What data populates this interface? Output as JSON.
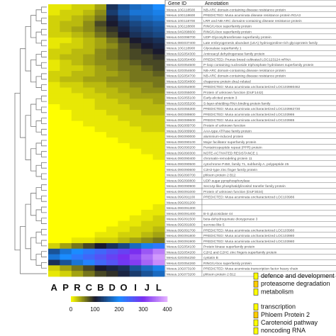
{
  "chart_data": {
    "type": "heatmap",
    "title": "",
    "xlabel": "",
    "ylabel": "",
    "columns": [
      "A",
      "P",
      "R",
      "C",
      "B",
      "D",
      "O",
      "I",
      "J",
      "L"
    ],
    "color_scale": {
      "ticks": [
        0,
        100,
        200,
        300,
        400
      ],
      "range": [
        0,
        400
      ],
      "colors": [
        "#ffff00",
        "#1a1a2e",
        "#1a8cff",
        "#7a2ff0",
        "#e6b3ff"
      ]
    },
    "table_headers": [
      "Gene ID",
      "Annotation"
    ],
    "rows": [
      {
        "gene_id": "Mesus.10G118500",
        "annotation": "NB-ARC domain-containing disease resistance protein",
        "cat": "#2b2bd6",
        "values": [
          10,
          10,
          20,
          20,
          40,
          120,
          150,
          170,
          180,
          200
        ]
      },
      {
        "gene_id": "Mesus.10G118600",
        "annotation": "PREDICTED: Musa acuminata disease resistance protein RGA3",
        "cat": "#2b2bd6",
        "values": [
          10,
          20,
          20,
          30,
          50,
          130,
          160,
          180,
          180,
          190
        ]
      },
      {
        "gene_id": "Mesus.10G118700",
        "annotation": "LRR and NB-ARC domains-containing disease resistance protein",
        "cat": "#2b2bd6",
        "values": [
          20,
          20,
          30,
          40,
          60,
          110,
          140,
          160,
          170,
          180
        ]
      },
      {
        "gene_id": "Mesus.10G118800",
        "annotation": "RING/U-box superfamily protein",
        "cat": "#2b2bd6",
        "values": [
          20,
          30,
          30,
          50,
          80,
          100,
          120,
          140,
          150,
          160
        ]
      },
      {
        "gene_id": "Mesus.04G098600",
        "annotation": "RING/U-box superfamily protein",
        "cat": "#2b2bd6",
        "values": [
          20,
          30,
          40,
          50,
          70,
          90,
          110,
          130,
          140,
          150
        ]
      },
      {
        "gene_id": "Mesus.04G098700",
        "annotation": "UDP-Glycosyltransferase superfamily protein",
        "cat": "#2b2bd6",
        "values": [
          20,
          20,
          30,
          40,
          60,
          80,
          100,
          120,
          130,
          140
        ]
      },
      {
        "gene_id": "Mesus.08G037400",
        "annotation": "Late embryogenesis abundant (LEA) hydroxyproline-rich glycoprotein family",
        "cat": "#2b2bd6",
        "values": [
          10,
          10,
          20,
          30,
          40,
          60,
          80,
          100,
          110,
          120
        ]
      },
      {
        "gene_id": "Mesus.10G118900",
        "annotation": "Glyoxalase superfamily 1",
        "cat": "#2b2bd6",
        "values": [
          10,
          20,
          20,
          30,
          40,
          50,
          70,
          90,
          100,
          110
        ]
      },
      {
        "gene_id": "Mesus.02G054300",
        "annotation": "Aminoacyl dehydrogenase family protein",
        "cat": "#2b2bd6",
        "values": [
          20,
          20,
          30,
          30,
          50,
          60,
          70,
          80,
          90,
          100
        ]
      },
      {
        "gene_id": "Mesus.02G054400",
        "annotation": "PREDICTED: Prunus breed cultivated LOC123124 mRNA",
        "cat": "#2b2bd6",
        "values": [
          20,
          30,
          30,
          40,
          50,
          60,
          70,
          80,
          80,
          90
        ]
      },
      {
        "gene_id": "Mesus.02G054500",
        "annotation": "P-loop containing nucleoside triphosphate hydrolases superfamily protein",
        "cat": "#2b2bd6",
        "values": [
          10,
          20,
          30,
          40,
          50,
          50,
          60,
          70,
          80,
          80
        ]
      },
      {
        "gene_id": "Mesus.02G054600",
        "annotation": "NB-ARC domain-containing disease resistance protein",
        "cat": "#2b2bd6",
        "values": [
          10,
          20,
          20,
          30,
          40,
          50,
          60,
          60,
          70,
          80
        ]
      },
      {
        "gene_id": "Mesus.02G054700",
        "annotation": "NB-ARC domain-containing disease resistance protein",
        "cat": "#2b2bd6",
        "values": [
          20,
          20,
          30,
          30,
          40,
          40,
          50,
          60,
          60,
          70
        ]
      },
      {
        "gene_id": "Mesus.02G054800",
        "annotation": "chaperone protein dnaJ-related",
        "cat": "#2b2bd6",
        "values": [
          20,
          30,
          30,
          40,
          40,
          50,
          50,
          60,
          60,
          60
        ]
      },
      {
        "gene_id": "Mesus.02G054900",
        "annotation": "PREDICTED: Musa acuminata uncharacterized LOC103980462",
        "cat": "#2b2bd6",
        "values": [
          10,
          20,
          20,
          30,
          30,
          40,
          40,
          50,
          50,
          60
        ]
      },
      {
        "gene_id": "Mesus.02G055000",
        "annotation": "Protein of unknown function (DUF1442)",
        "cat": "#2b2bd6",
        "values": [
          10,
          10,
          20,
          20,
          30,
          30,
          40,
          40,
          50,
          50
        ]
      },
      {
        "gene_id": "Mesus.02G055100",
        "annotation": "Early-elicited protein 3",
        "cat": "#2b2bd6",
        "values": [
          10,
          10,
          10,
          20,
          20,
          30,
          30,
          40,
          40,
          40
        ]
      },
      {
        "gene_id": "Mesus.02G055200",
        "annotation": "S-layer-shielding-RNA-binding protein family",
        "cat": "#2b2bd6",
        "values": [
          10,
          10,
          10,
          10,
          20,
          20,
          30,
          30,
          30,
          40
        ]
      },
      {
        "gene_id": "Mesus.02G055300",
        "annotation": "PREDICTED: Musa acuminata uncharacterized LOC103982730",
        "cat": "#2b2bd6",
        "values": [
          0,
          10,
          10,
          10,
          20,
          20,
          20,
          30,
          30,
          30
        ]
      },
      {
        "gene_id": "Mesus.08G089800",
        "annotation": "PREDICTED: Musa acuminata uncharacterized LOC103986",
        "cat": "#2b2bd6",
        "values": [
          0,
          0,
          10,
          10,
          10,
          20,
          20,
          20,
          30,
          30
        ]
      },
      {
        "gene_id": "Mesus.09G089600",
        "annotation": "PREDICTED: Musa acuminata uncharacterized LOC103986",
        "cat": "#2b2bd6",
        "values": [
          0,
          0,
          10,
          10,
          10,
          10,
          20,
          20,
          20,
          20
        ]
      },
      {
        "gene_id": "Mesus.09G089700",
        "annotation": "Protein of unknown function",
        "cat": "#2b2bd6",
        "values": [
          0,
          0,
          0,
          10,
          10,
          10,
          10,
          20,
          20,
          20
        ]
      },
      {
        "gene_id": "Mesus.09G089900",
        "annotation": "AAA-type ATPase family protein",
        "cat": "#2b2bd6",
        "values": [
          0,
          0,
          0,
          0,
          10,
          10,
          10,
          10,
          20,
          20
        ]
      },
      {
        "gene_id": "Mesus.09G090000",
        "annotation": "aluminium-induced protein",
        "cat": "#2b2bd6",
        "values": [
          0,
          0,
          0,
          0,
          0,
          10,
          10,
          10,
          10,
          10
        ]
      },
      {
        "gene_id": "Mesus.09G090100",
        "annotation": "Major facilitator superfamily protein",
        "cat": "#2b2bd6",
        "values": [
          0,
          0,
          0,
          0,
          0,
          0,
          10,
          10,
          10,
          10
        ]
      },
      {
        "gene_id": "Mesus.09G090200",
        "annotation": "Pentatricopeptide repeat (PPR) protein",
        "cat": "#2b2bd6",
        "values": [
          0,
          0,
          0,
          0,
          0,
          0,
          0,
          10,
          10,
          10
        ]
      },
      {
        "gene_id": "Mesus.09G090300",
        "annotation": "NOTE-ACTIVATED RESISTANCE 1",
        "cat": "#2b2bd6",
        "values": [
          0,
          0,
          0,
          0,
          0,
          0,
          0,
          0,
          10,
          10
        ]
      },
      {
        "gene_id": "Mesus.09G090400",
        "annotation": "chromatin-remodeling protein 11",
        "cat": "#2b2bd6",
        "values": [
          0,
          0,
          0,
          0,
          0,
          0,
          0,
          0,
          0,
          10
        ]
      },
      {
        "gene_id": "Mesus.09G090500",
        "annotation": "cytochrome P450, family 71, subfamily A, polypeptide 25",
        "cat": "#2b2bd6",
        "values": [
          0,
          0,
          0,
          0,
          0,
          0,
          0,
          0,
          0,
          0
        ]
      },
      {
        "gene_id": "Mesus.09G090600",
        "annotation": "C2H2-type zinc finger family protein",
        "cat": "#2b2bd6",
        "values": [
          0,
          0,
          0,
          0,
          0,
          0,
          0,
          0,
          0,
          0
        ]
      },
      {
        "gene_id": "Mesus.09G090700",
        "annotation": "phloem protein 2 B12",
        "cat": "#2b2bd6",
        "values": [
          0,
          0,
          0,
          0,
          0,
          0,
          0,
          0,
          0,
          0
        ]
      },
      {
        "gene_id": "Mesus.09G090800",
        "annotation": "UDP-sugar pyrophosphorylase",
        "cat": "#2b2bd6",
        "values": [
          0,
          0,
          0,
          0,
          0,
          0,
          0,
          0,
          0,
          0
        ]
      },
      {
        "gene_id": "Mesus.09G090900",
        "annotation": "Sec14p-like phosphatidylinositol transfer family protein",
        "cat": "#2b2bd6",
        "values": [
          0,
          0,
          0,
          0,
          0,
          0,
          0,
          0,
          0,
          0
        ]
      },
      {
        "gene_id": "Mesus.09G091000",
        "annotation": "Protein of unknown function (DUF3024)",
        "cat": "#2b2bd6",
        "values": [
          0,
          0,
          0,
          0,
          0,
          0,
          0,
          0,
          0,
          0
        ]
      },
      {
        "gene_id": "Mesus.09G091100",
        "annotation": "PREDICTED: Musa acuminata uncharacterized LOC103986",
        "cat": "#2b2bd6",
        "values": [
          0,
          0,
          0,
          0,
          0,
          0,
          0,
          0,
          0,
          0
        ]
      },
      {
        "gene_id": "Mesus.09G091200",
        "annotation": "",
        "cat": "#2b2bd6",
        "values": [
          0,
          0,
          0,
          0,
          0,
          0,
          0,
          0,
          0,
          0
        ]
      },
      {
        "gene_id": "Mesus.09G091300",
        "annotation": "",
        "cat": "#2b2bd6",
        "values": [
          0,
          0,
          0,
          0,
          0,
          0,
          0,
          0,
          0,
          10
        ]
      },
      {
        "gene_id": "Mesus.09G091400",
        "annotation": "B-S glucosidase 44",
        "cat": "#2b2bd6",
        "values": [
          0,
          0,
          0,
          0,
          0,
          0,
          0,
          0,
          10,
          10
        ]
      },
      {
        "gene_id": "Mesus.09G091500",
        "annotation": "beta-dehydroquinate dioxygenase 3",
        "cat": "#2b2bd6",
        "values": [
          0,
          0,
          0,
          0,
          0,
          0,
          0,
          10,
          10,
          20
        ]
      },
      {
        "gene_id": "Mesus.09G091600",
        "annotation": "sucrose-like 5",
        "cat": "#2b2bd6",
        "values": [
          0,
          0,
          0,
          0,
          0,
          0,
          10,
          10,
          20,
          20
        ]
      },
      {
        "gene_id": "Mesus.09G091700",
        "annotation": "PREDICTED: Musa acuminata uncharacterized LOC103980",
        "cat": "#2b2bd6",
        "values": [
          0,
          0,
          0,
          0,
          0,
          10,
          10,
          20,
          20,
          30
        ]
      },
      {
        "gene_id": "Mesus.09G091800",
        "annotation": "PREDICTED: Musa acuminata uncharacterized LOC103980",
        "cat": "#2b2bd6",
        "values": [
          0,
          0,
          0,
          0,
          10,
          10,
          20,
          20,
          30,
          40
        ]
      },
      {
        "gene_id": "Mesus.09G091900",
        "annotation": "PREDICTED: Musa acuminata uncharacterized LOC103980",
        "cat": "#2b2bd6",
        "values": [
          0,
          0,
          10,
          10,
          20,
          20,
          30,
          40,
          50,
          60
        ]
      },
      {
        "gene_id": "Mesus.02G054100",
        "annotation": "Protein kinase superfamily protein",
        "cat": "#2b2bd6",
        "values": [
          20,
          40,
          60,
          80,
          100,
          120,
          140,
          170,
          190,
          220
        ]
      },
      {
        "gene_id": "Mesus.02G054200",
        "annotation": "C2H2 and C2HC zinc fingers superfamily protein",
        "cat": "#2b2bd6",
        "values": [
          150,
          180,
          200,
          220,
          240,
          260,
          280,
          300,
          330,
          360
        ]
      },
      {
        "gene_id": "Mesus.02G054250",
        "annotation": "cystatin B",
        "cat": "#2b2bd6",
        "values": [
          180,
          200,
          220,
          240,
          260,
          280,
          300,
          320,
          350,
          380
        ]
      },
      {
        "gene_id": "Mesus.02G054260",
        "annotation": "RING/U-box superfamily protein",
        "cat": "#2b2bd6",
        "values": [
          120,
          150,
          180,
          210,
          240,
          260,
          290,
          310,
          340,
          370
        ]
      },
      {
        "gene_id": "Mesus.10G073100",
        "annotation": "PREDICTED: Musa acuminata transcription factor heavy chain",
        "cat": "#2b2bd6",
        "values": [
          20,
          40,
          60,
          80,
          100,
          110,
          120,
          150,
          170,
          190
        ]
      },
      {
        "gene_id": "Mesus.10G073200",
        "annotation": "phloem protein 2 B12",
        "cat": "#2b2bd6",
        "values": [
          10,
          20,
          40,
          60,
          80,
          90,
          110,
          130,
          150,
          170
        ]
      }
    ],
    "legend": [
      {
        "label": "defence and development",
        "color": "#ffff00"
      },
      {
        "label": "proteasome degradation",
        "color": "#ffcc00"
      },
      {
        "label": "metabolism",
        "color": "#ffff00"
      },
      {
        "label": "transcription",
        "color": "#ffff00"
      },
      {
        "label": "Phloem Protein 2",
        "color": "#ffcc00"
      },
      {
        "label": "Carotenoid pathway",
        "color": "#ffff00"
      },
      {
        "label": "noncoding RNA",
        "color": "#ffff00"
      }
    ]
  }
}
